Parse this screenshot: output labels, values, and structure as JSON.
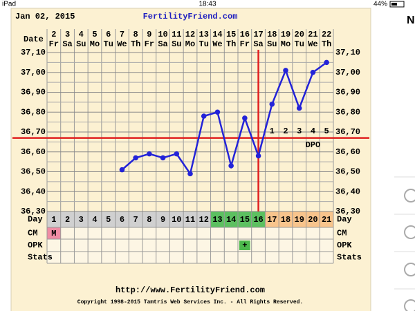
{
  "status_bar": {
    "device": "iPad",
    "time": "18:43",
    "battery": "44%"
  },
  "sidebar": {
    "heading": "N"
  },
  "chart": {
    "date_label": "Jan 02, 2015",
    "site": "FertilityFriend.com",
    "row_label_date": "Date",
    "dates": [
      "2",
      "3",
      "4",
      "5",
      "6",
      "7",
      "8",
      "9",
      "10",
      "11",
      "12",
      "13",
      "14",
      "15",
      "16",
      "17",
      "18",
      "19",
      "20",
      "21",
      "22"
    ],
    "weekdays": [
      "Fr",
      "Sa",
      "Su",
      "Mo",
      "Tu",
      "We",
      "Th",
      "Fr",
      "Sa",
      "Su",
      "Mo",
      "Tu",
      "We",
      "Th",
      "Fr",
      "Sa",
      "Su",
      "Mo",
      "Tu",
      "We",
      "Th"
    ],
    "temperatures": [
      null,
      null,
      null,
      null,
      null,
      36.51,
      36.57,
      36.59,
      36.57,
      36.59,
      36.49,
      36.78,
      36.8,
      36.53,
      36.77,
      36.58,
      36.84,
      37.01,
      36.82,
      37.0,
      37.05
    ],
    "line_color": "#2323d8",
    "ylim": [
      36.3,
      37.1
    ],
    "yticks": [
      {
        "value": 36.3,
        "label": "36,30"
      },
      {
        "value": 36.4,
        "label": "36,40"
      },
      {
        "value": 36.5,
        "label": "36,50"
      },
      {
        "value": 36.6,
        "label": "36,60"
      },
      {
        "value": 36.7,
        "label": "36,70"
      },
      {
        "value": 36.8,
        "label": "36,80"
      },
      {
        "value": 36.9,
        "label": "36,90"
      },
      {
        "value": 37.0,
        "label": "37,00"
      },
      {
        "value": 37.1,
        "label": "37,10"
      }
    ],
    "coverline": 36.67,
    "ovulation_cycle_day": 16,
    "reference_color": "#e02020",
    "dpo": [
      1,
      2,
      3,
      4,
      5
    ],
    "dpo_label": "DPO",
    "row_labels": {
      "day": "Day",
      "cm": "CM",
      "opk": "OPK",
      "stats": "Stats"
    },
    "cycle_days": [
      1,
      2,
      3,
      4,
      5,
      6,
      7,
      8,
      9,
      10,
      11,
      12,
      13,
      14,
      15,
      16,
      17,
      18,
      19,
      20,
      21
    ],
    "cycle_day_colors": [
      "#d0d0d0",
      "#d0d0d0",
      "#d0d0d0",
      "#d0d0d0",
      "#d0d0d0",
      "#d0d0d0",
      "#d0d0d0",
      "#d0d0d0",
      "#d0d0d0",
      "#d0d0d0",
      "#d0d0d0",
      "#d0d0d0",
      "#5cc060",
      "#5cc060",
      "#5cc060",
      "#5cc060",
      "#f8c48c",
      "#f8c48c",
      "#f8c48c",
      "#f8c48c",
      "#f8c48c"
    ],
    "cm": [
      "M",
      null,
      null,
      null,
      null,
      null,
      null,
      null,
      null,
      null,
      null,
      null,
      null,
      null,
      null,
      null,
      null,
      null,
      null,
      null,
      null
    ],
    "cm_color": "#f08ca4",
    "opk": [
      null,
      null,
      null,
      null,
      null,
      null,
      null,
      null,
      null,
      null,
      null,
      null,
      null,
      null,
      "+",
      null,
      null,
      null,
      null,
      null,
      null
    ],
    "opk_color": "#4cb84c"
  },
  "footer": {
    "url": "http://www.FertilityFriend.com",
    "copyright": "Copyright 1998-2015 Tamtris Web Services Inc. - All Rights Reserved."
  }
}
